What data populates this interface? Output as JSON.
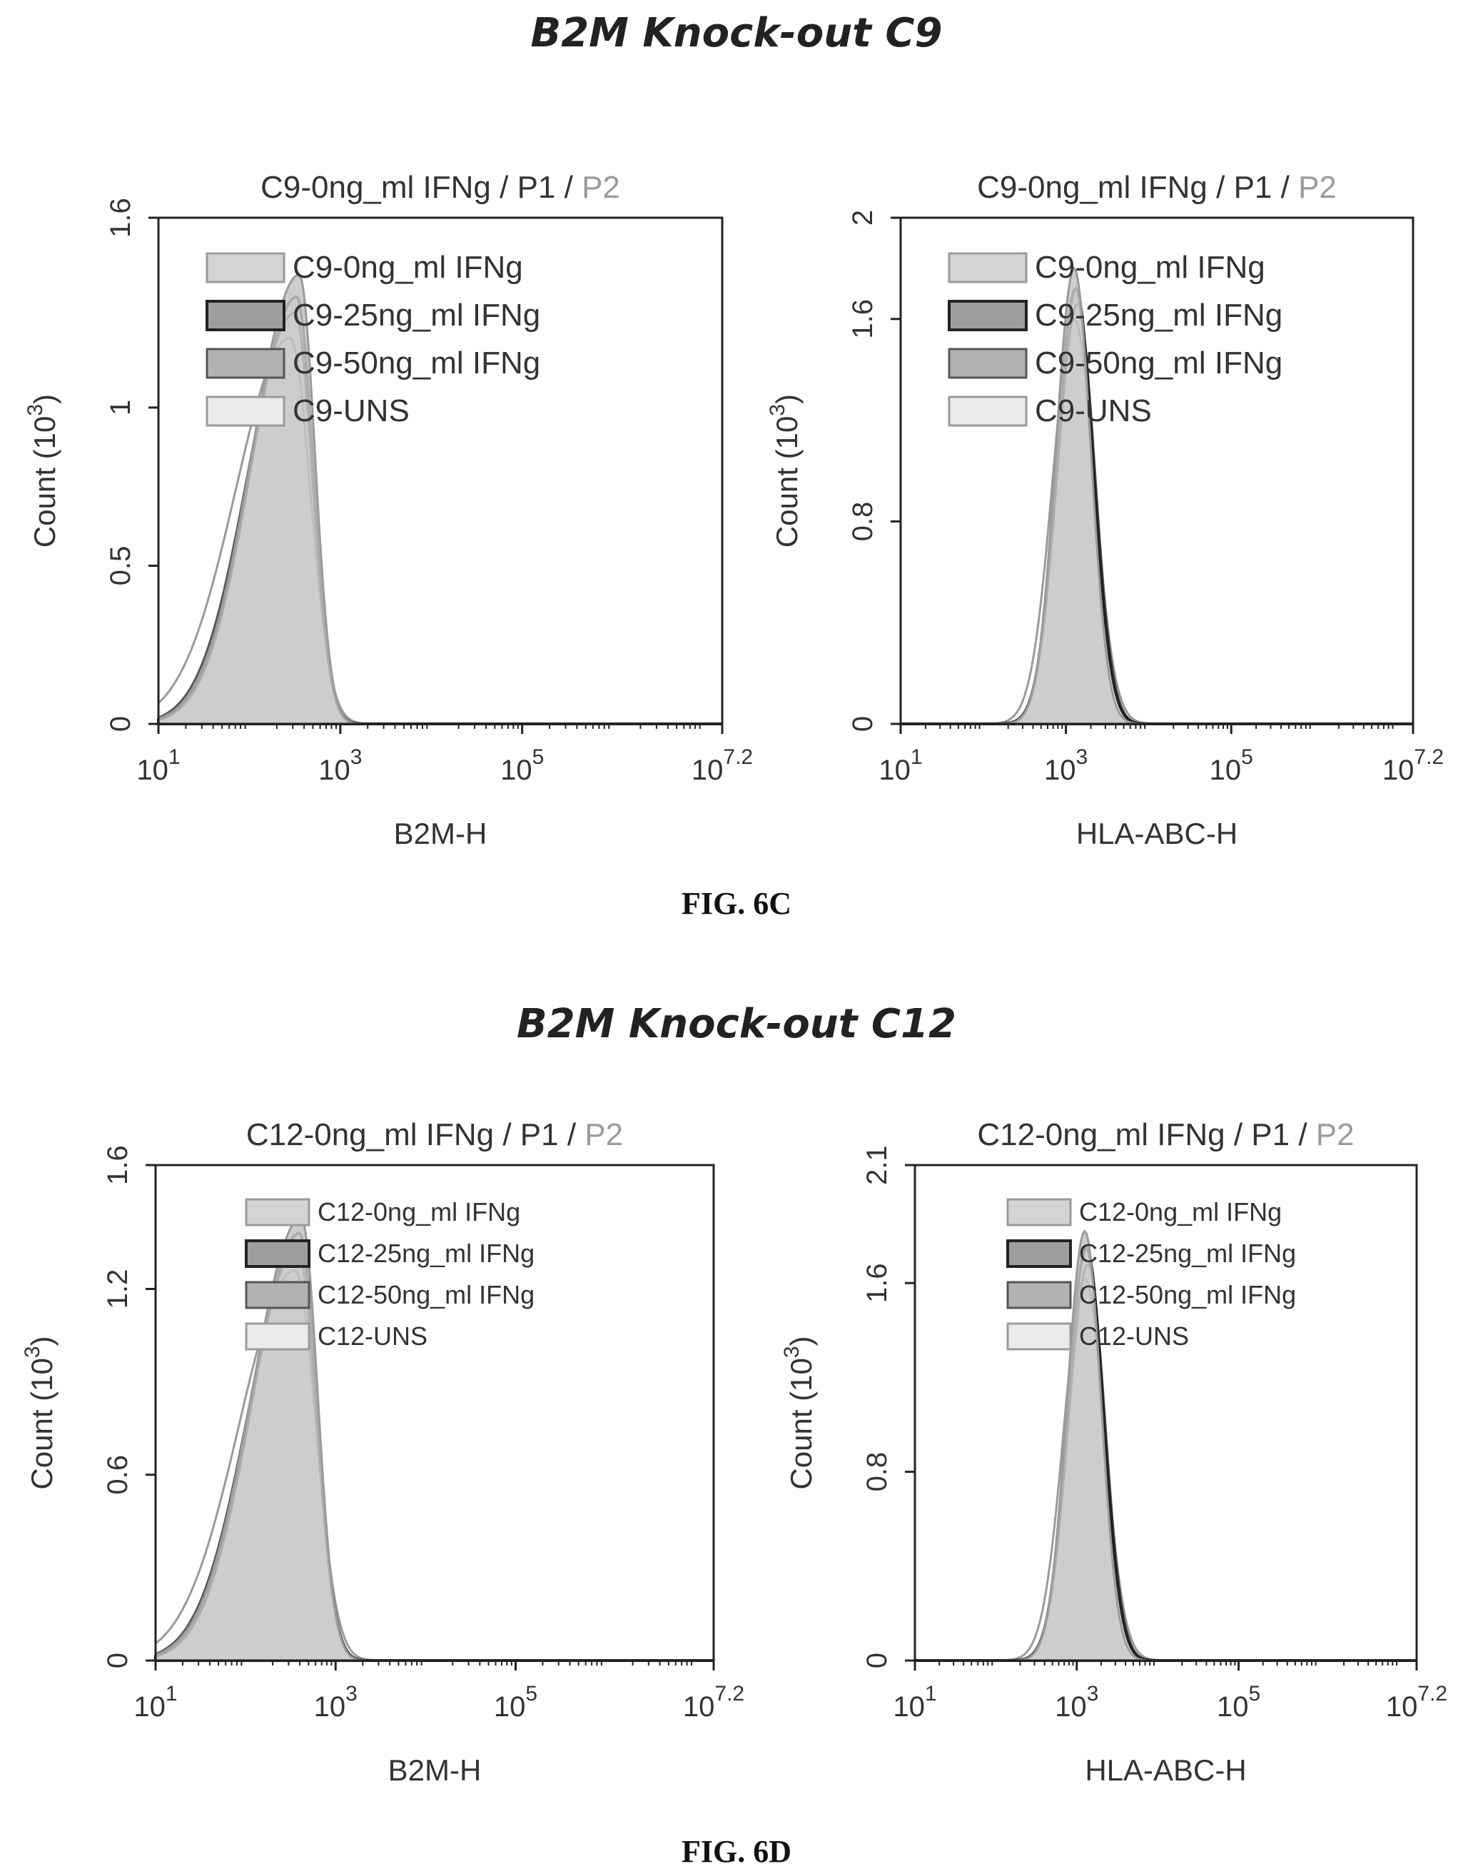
{
  "figures": [
    {
      "heading": "B2M Knock-out C9",
      "label": "FIG. 6C"
    },
    {
      "heading": "B2M Knock-out C12",
      "label": "FIG. 6D"
    }
  ],
  "colors": {
    "fill": "#c4c4c4",
    "line_dark": "#222222",
    "line_mid": "#555555",
    "line_light": "#9a9a9a",
    "title_gray": "#9b9b9b",
    "axis": "#222222"
  },
  "chart_data": [
    {
      "type": "area",
      "title": "C9-0ng_ml IFNg / P1 / P2",
      "xlabel": "B2M-H",
      "ylabel": "Count (10^3)",
      "x_scale": "log10",
      "xlim": [
        1,
        7.2
      ],
      "xticks": [
        1,
        3,
        5,
        7.2
      ],
      "ylim": [
        0,
        1.6
      ],
      "yticks": [
        "0",
        "0.5",
        "1",
        "1.6"
      ],
      "ytick_values": [
        0,
        0.5,
        1,
        1.6
      ],
      "legend": [
        "C9-0ng_ml IFNg",
        "C9-25ng_ml IFNg",
        "C9-50ng_ml IFNg",
        "C9-UNS"
      ],
      "legend_position": "top-left",
      "series": [
        {
          "name": "C9-0ng_ml IFNg",
          "peak_log": 2.55,
          "peak": 1.42,
          "left_width": 0.52,
          "right_width": 0.17
        },
        {
          "name": "C9-25ng_ml IFNg",
          "peak_log": 2.52,
          "peak": 1.35,
          "left_width": 0.5,
          "right_width": 0.18
        },
        {
          "name": "C9-50ng_ml IFNg",
          "peak_log": 2.5,
          "peak": 1.3,
          "left_width": 0.52,
          "right_width": 0.19
        },
        {
          "name": "C9-UNS",
          "peak_log": 2.45,
          "peak": 1.22,
          "left_width": 0.6,
          "right_width": 0.22
        }
      ]
    },
    {
      "type": "area",
      "title": "C9-0ng_ml IFNg / P1 / P2",
      "xlabel": "HLA-ABC-H",
      "ylabel": "Count (10^3)",
      "x_scale": "log10",
      "xlim": [
        1,
        7.2
      ],
      "xticks": [
        1,
        3,
        5,
        7.2
      ],
      "ylim": [
        0,
        2
      ],
      "yticks": [
        "0",
        "0.8",
        "1.6",
        "2"
      ],
      "ytick_values": [
        0,
        0.8,
        1.6,
        2
      ],
      "legend": [
        "C9-0ng_ml IFNg",
        "C9-25ng_ml IFNg",
        "C9-50ng_ml IFNg",
        "C9-UNS"
      ],
      "legend_position": "top-left",
      "series": [
        {
          "name": "C9-0ng_ml IFNg",
          "peak_log": 3.1,
          "peak": 1.8,
          "left_width": 0.22,
          "right_width": 0.2
        },
        {
          "name": "C9-25ng_ml IFNg",
          "peak_log": 3.12,
          "peak": 1.72,
          "left_width": 0.23,
          "right_width": 0.21
        },
        {
          "name": "C9-50ng_ml IFNg",
          "peak_log": 3.14,
          "peak": 1.66,
          "left_width": 0.24,
          "right_width": 0.21
        },
        {
          "name": "C9-UNS",
          "peak_log": 3.1,
          "peak": 1.6,
          "left_width": 0.26,
          "right_width": 0.24
        }
      ]
    },
    {
      "type": "area",
      "title": "C12-0ng_ml IFNg / P1 / P2",
      "xlabel": "B2M-H",
      "ylabel": "Count (10^3)",
      "x_scale": "log10",
      "xlim": [
        1,
        7.2
      ],
      "xticks": [
        1,
        3,
        5,
        7.2
      ],
      "ylim": [
        0,
        1.6
      ],
      "yticks": [
        "0",
        "0.6",
        "1.2",
        "1.6"
      ],
      "ytick_values": [
        0,
        0.6,
        1.2,
        1.6
      ],
      "legend": [
        "C12-0ng_ml IFNg",
        "C12-25ng_ml IFNg",
        "C12-50ng_ml IFNg",
        "C12-UNS"
      ],
      "legend_position": "top-center",
      "series": [
        {
          "name": "C12-0ng_ml IFNg",
          "peak_log": 2.62,
          "peak": 1.43,
          "left_width": 0.55,
          "right_width": 0.18
        },
        {
          "name": "C12-25ng_ml IFNg",
          "peak_log": 2.6,
          "peak": 1.38,
          "left_width": 0.53,
          "right_width": 0.19
        },
        {
          "name": "C12-50ng_ml IFNg",
          "peak_log": 2.58,
          "peak": 1.33,
          "left_width": 0.55,
          "right_width": 0.2
        },
        {
          "name": "C12-UNS",
          "peak_log": 2.55,
          "peak": 1.26,
          "left_width": 0.62,
          "right_width": 0.23
        }
      ]
    },
    {
      "type": "area",
      "title": "C12-0ng_ml IFNg / P1 / P2",
      "xlabel": "HLA-ABC-H",
      "ylabel": "Count (10^3)",
      "x_scale": "log10",
      "xlim": [
        1,
        7.2
      ],
      "xticks": [
        1,
        3,
        5,
        7.2
      ],
      "ylim": [
        0,
        2.1
      ],
      "yticks": [
        "0",
        "0.8",
        "1.6",
        "2.1"
      ],
      "ytick_values": [
        0,
        0.8,
        1.6,
        2.1
      ],
      "legend": [
        "C12-0ng_ml IFNg",
        "C12-25ng_ml IFNg",
        "C12-50ng_ml IFNg",
        "C12-UNS"
      ],
      "legend_position": "top-center",
      "series": [
        {
          "name": "C12-0ng_ml IFNg",
          "peak_log": 3.1,
          "peak": 1.82,
          "left_width": 0.22,
          "right_width": 0.2
        },
        {
          "name": "C12-25ng_ml IFNg",
          "peak_log": 3.12,
          "peak": 1.75,
          "left_width": 0.23,
          "right_width": 0.21
        },
        {
          "name": "C12-50ng_ml IFNg",
          "peak_log": 3.14,
          "peak": 1.68,
          "left_width": 0.24,
          "right_width": 0.21
        },
        {
          "name": "C12-UNS",
          "peak_log": 3.1,
          "peak": 1.62,
          "left_width": 0.26,
          "right_width": 0.24
        }
      ]
    }
  ]
}
